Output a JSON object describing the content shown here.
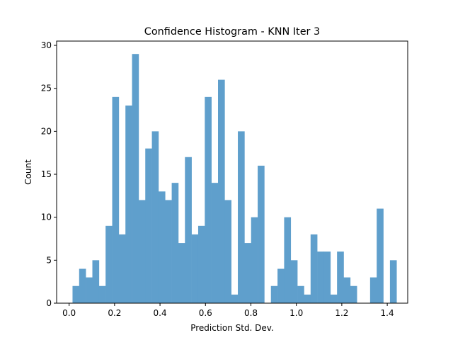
{
  "chart_data": {
    "type": "bar",
    "subtype": "histogram",
    "title": "Confidence Histogram - KNN Iter 3",
    "xlabel": "Prediction Std. Dev.",
    "ylabel": "Count",
    "bar_color": "#5f9fcc",
    "grid": false,
    "xlim": [
      -0.055,
      1.49
    ],
    "ylim": [
      0,
      30.5
    ],
    "xticks": [
      0.0,
      0.2,
      0.4,
      0.6,
      0.8,
      1.0,
      1.2,
      1.4
    ],
    "xtick_labels": [
      "0.0",
      "0.2",
      "0.4",
      "0.6",
      "0.8",
      "1.0",
      "1.2",
      "1.4"
    ],
    "yticks": [
      0,
      5,
      10,
      15,
      20,
      25,
      30
    ],
    "ytick_labels": [
      "0",
      "5",
      "10",
      "15",
      "20",
      "25",
      "30"
    ],
    "bin_start": 0.015,
    "bin_width": 0.0291,
    "counts": [
      2,
      4,
      3,
      5,
      2,
      9,
      24,
      8,
      23,
      29,
      12,
      18,
      20,
      13,
      12,
      14,
      7,
      17,
      8,
      9,
      24,
      14,
      26,
      12,
      1,
      20,
      7,
      10,
      16,
      0,
      2,
      4,
      10,
      5,
      2,
      1,
      8,
      6,
      6,
      1,
      6,
      3,
      2,
      0,
      0,
      3,
      11,
      0,
      5
    ]
  }
}
